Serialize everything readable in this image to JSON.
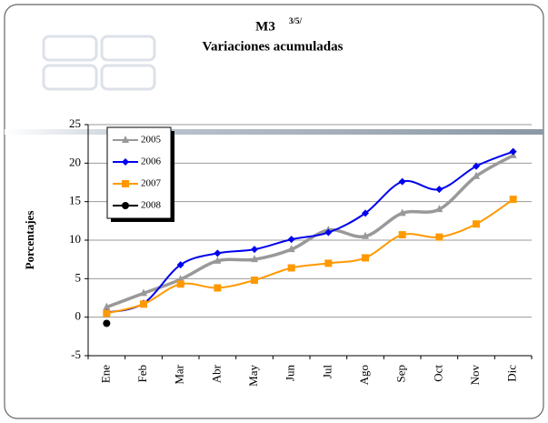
{
  "chart_data": {
    "type": "line",
    "title": "M3",
    "title_superscript": "3/5/",
    "subtitle": "Variaciones acumuladas",
    "y_label": "Porcentajes",
    "categories": [
      "Ene",
      "Feb",
      "Mar",
      "Abr",
      "May",
      "Jun",
      "Jul",
      "Ago",
      "Sep",
      "Oct",
      "Nov",
      "Dic"
    ],
    "series": [
      {
        "name": "2005",
        "color": "#999999",
        "marker": "triangle",
        "values": [
          1.3,
          3.1,
          4.9,
          7.3,
          7.5,
          8.8,
          11.3,
          10.5,
          13.5,
          14.0,
          18.3,
          21.0
        ]
      },
      {
        "name": "2006",
        "color": "#0000ee",
        "marker": "diamond",
        "values": [
          0.6,
          1.8,
          6.8,
          8.3,
          8.8,
          10.1,
          11.0,
          13.5,
          17.6,
          16.6,
          19.6,
          21.5
        ]
      },
      {
        "name": "2007",
        "color": "#ff9900",
        "marker": "square",
        "values": [
          0.5,
          1.7,
          4.3,
          3.8,
          4.8,
          6.4,
          7.0,
          7.7,
          10.7,
          10.4,
          12.1,
          15.3
        ]
      },
      {
        "name": "2008",
        "color": "#000000",
        "marker": "circle",
        "values": [
          -0.8,
          null,
          null,
          null,
          null,
          null,
          null,
          null,
          null,
          null,
          null,
          null
        ]
      }
    ],
    "ylim": [
      -5,
      25
    ],
    "yticks": [
      -5,
      0,
      5,
      10,
      15,
      20,
      25
    ],
    "grid": true,
    "legend": "top-left"
  }
}
